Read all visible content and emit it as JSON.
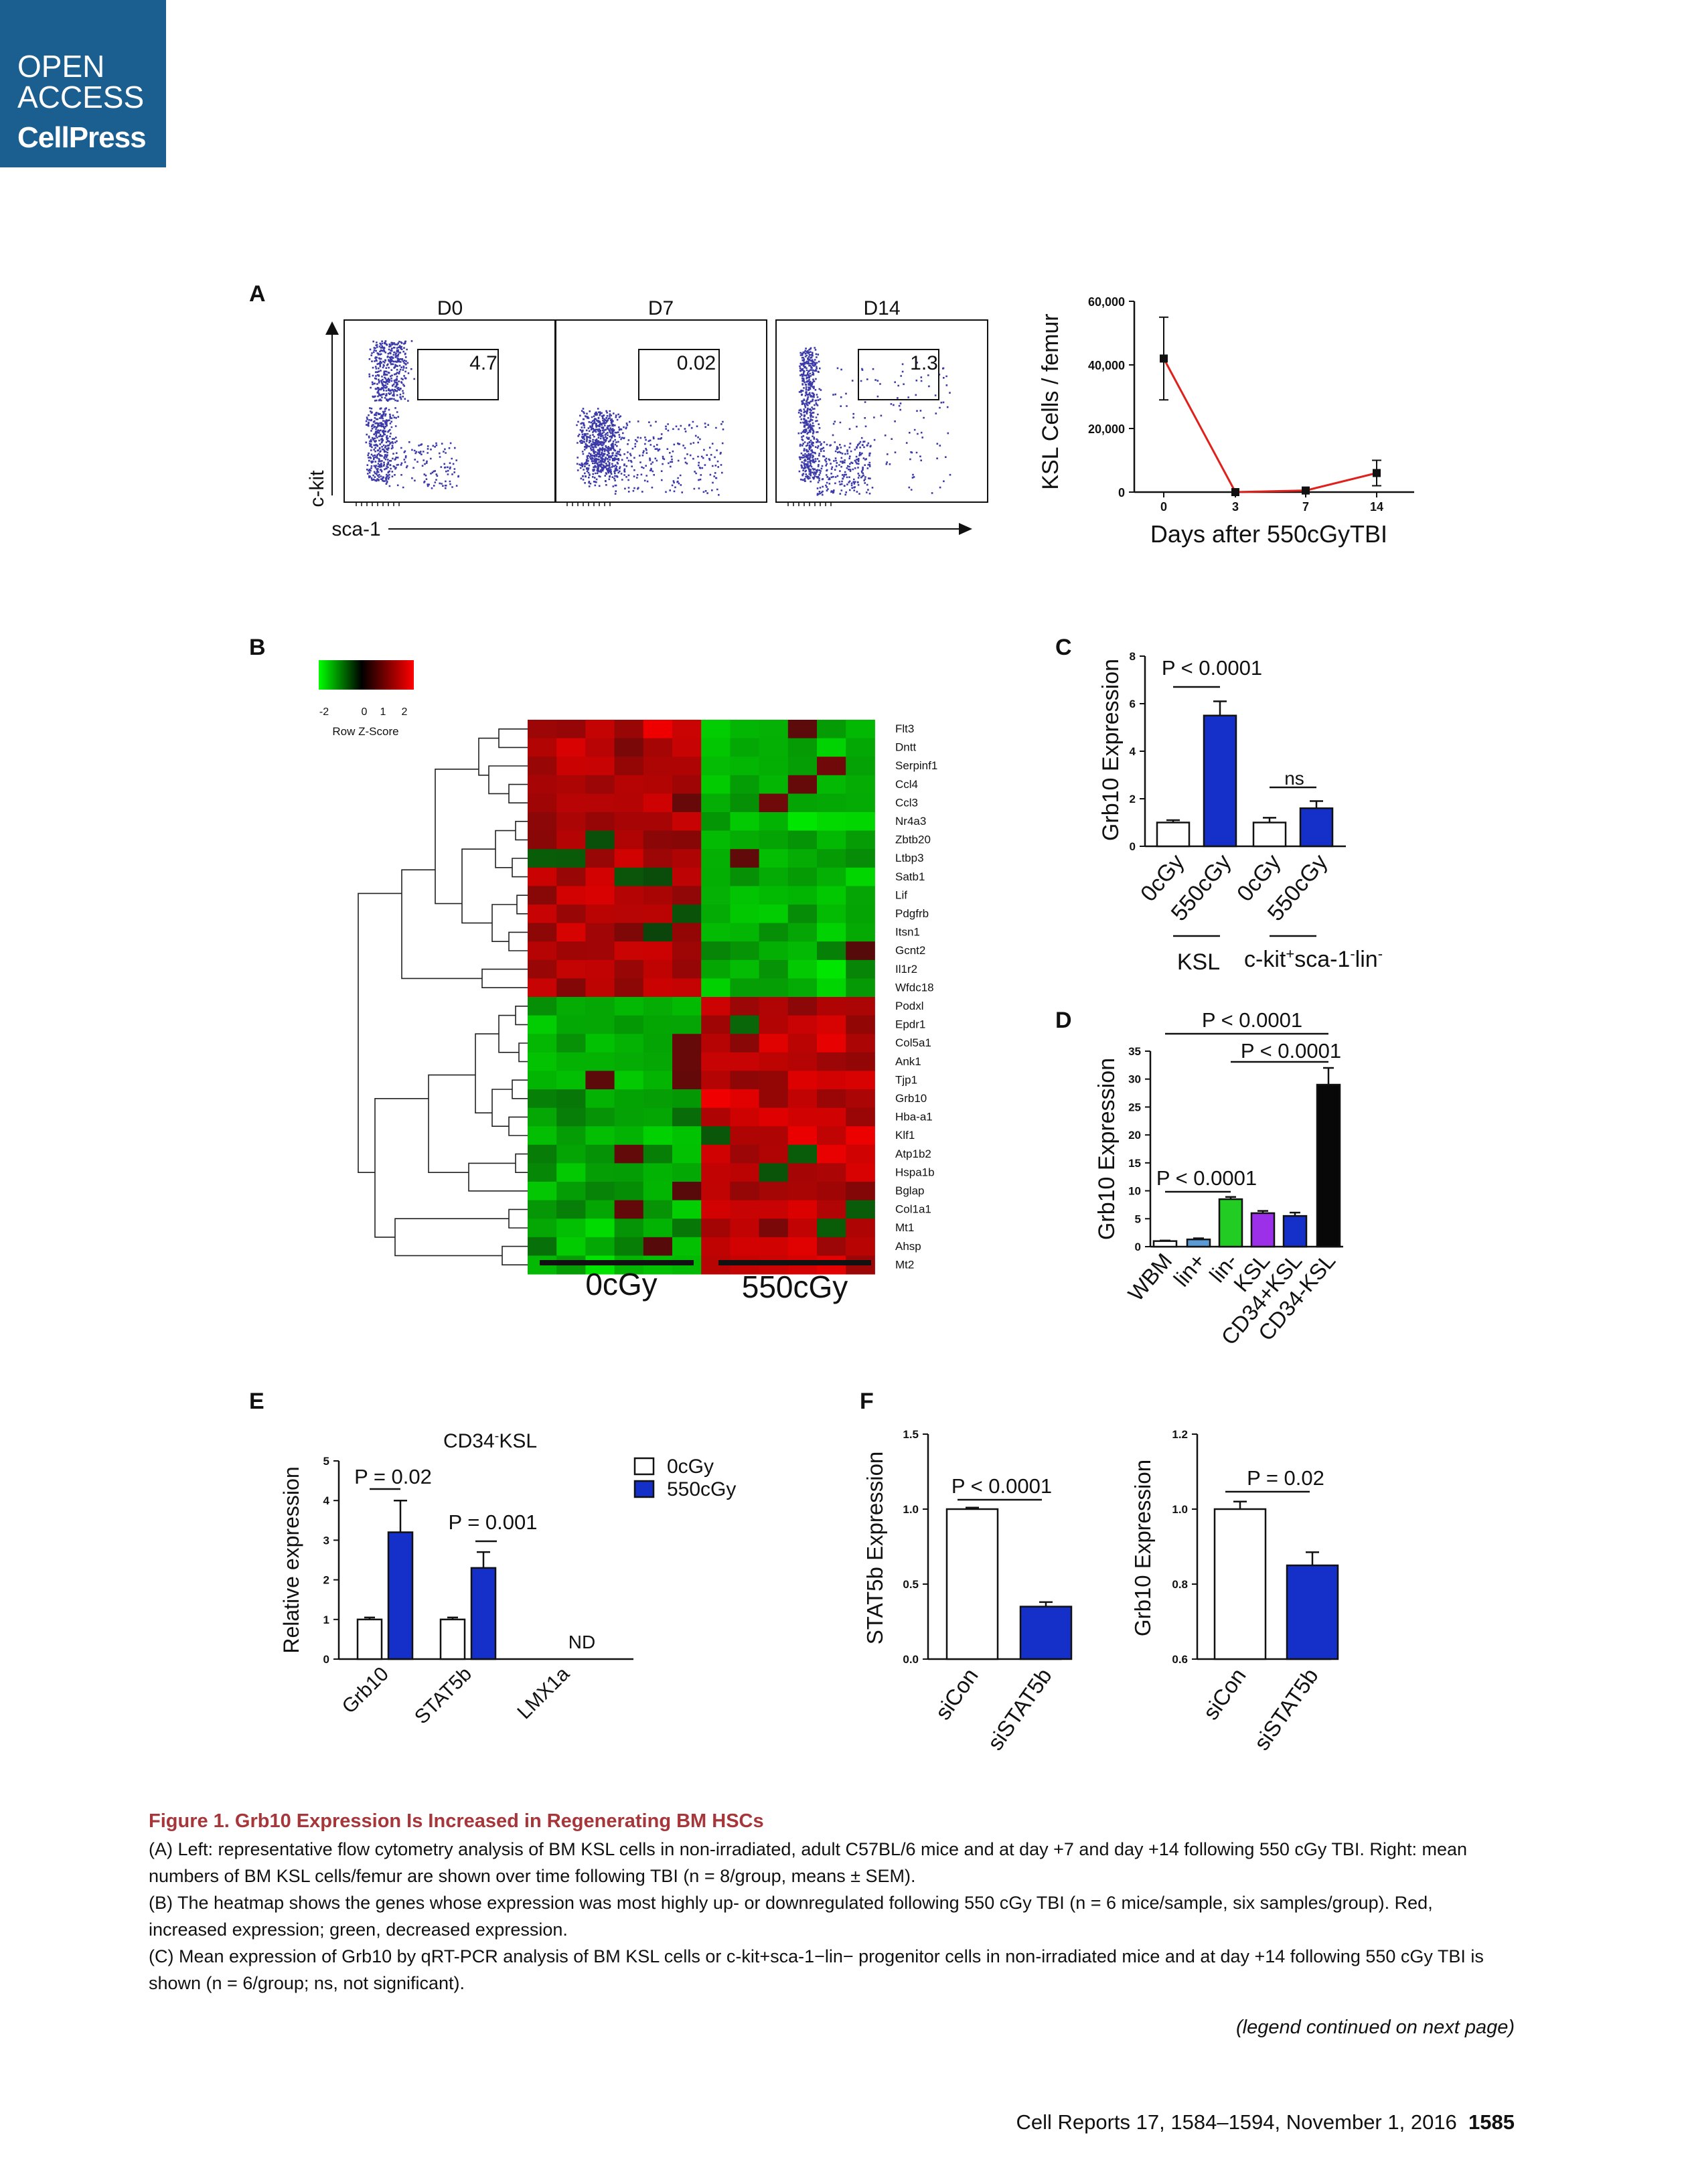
{
  "badge": {
    "line1": "OPEN",
    "line2": "ACCESS",
    "brand": "CellPress"
  },
  "panels": {
    "A": "A",
    "B": "B",
    "C": "C",
    "D": "D",
    "E": "E",
    "F": "F"
  },
  "panelA": {
    "flow": {
      "titles": [
        "D0",
        "D7",
        "D14"
      ],
      "gates": [
        "4.7",
        "0.02",
        "1.3"
      ],
      "ylabel": "c-kit",
      "xlabel": "sca-1",
      "dot_color": "#3b3aa8"
    },
    "chart_data": {
      "type": "line",
      "x": [
        0,
        3,
        7,
        14
      ],
      "y": [
        42000,
        0,
        500,
        6000
      ],
      "err": [
        13000,
        0,
        0,
        4000
      ],
      "xticks": [
        "0",
        "3",
        "7",
        "14"
      ],
      "yticks": [
        "0",
        "20,000",
        "40,000",
        "60,000"
      ],
      "ylim": [
        0,
        60000
      ],
      "xlabel": "Days after 550cGyTBI",
      "ylabel": "KSL Cells / femur",
      "color": "#e0201a"
    }
  },
  "panelB": {
    "scale": {
      "ticks": [
        "-2",
        "0",
        "1",
        "2"
      ],
      "label": "Row Z-Score"
    },
    "genes": [
      "Flt3",
      "Dntt",
      "Serpinf1",
      "Ccl4",
      "Ccl3",
      "Nr4a3",
      "Zbtb20",
      "Ltbp3",
      "Satb1",
      "Lif",
      "Pdgfrb",
      "Itsn1",
      "Gcnt2",
      "Il1r2",
      "Wfdc18",
      "Podxl",
      "Epdr1",
      "Col5a1",
      "Ank1",
      "Tjp1",
      "Grb10",
      "Hba-a1",
      "Klf1",
      "Atp1b2",
      "Hspa1b",
      "Bglap",
      "Col1a1",
      "Mt1",
      "Ahsp",
      "Mt2"
    ],
    "groups": [
      "0cGy",
      "550cGy"
    ],
    "chart_data": {
      "type": "heatmap",
      "rows": 30,
      "columns": 12,
      "groups": [
        "0cGy",
        "550cGy"
      ],
      "color_scale": [
        "#00c000",
        "#000000",
        "#e00000"
      ]
    }
  },
  "panelC": {
    "chart_data": {
      "type": "bar",
      "categories": [
        "0cGy",
        "550cGy",
        "0cGy",
        "550cGy"
      ],
      "values": [
        1.0,
        5.5,
        1.0,
        1.6
      ],
      "err": [
        0.1,
        0.6,
        0.2,
        0.3
      ],
      "colors": [
        "#ffffff",
        "#1530c8",
        "#ffffff",
        "#1530c8"
      ],
      "ylim": [
        0,
        8
      ],
      "yticks": [
        "0",
        "2",
        "4",
        "6",
        "8"
      ],
      "ylabel": "Grb10 Expression",
      "group_labels": [
        "KSL",
        "c-kit+sca-1-lin-"
      ],
      "annotations": [
        "P < 0.0001",
        "ns"
      ]
    }
  },
  "panelD": {
    "chart_data": {
      "type": "bar",
      "categories": [
        "WBM",
        "lin+",
        "lin-",
        "KSL",
        "CD34+KSL",
        "CD34-KSL"
      ],
      "values": [
        1.0,
        1.3,
        8.5,
        6.0,
        5.5,
        29.0
      ],
      "err": [
        0.1,
        0.2,
        0.4,
        0.4,
        0.6,
        3.0
      ],
      "colors": [
        "#ffffff",
        "#5b9bd5",
        "#22cc22",
        "#9b30e8",
        "#1530c8",
        "#080808"
      ],
      "ylim": [
        0,
        35
      ],
      "yticks": [
        "0",
        "5",
        "10",
        "15",
        "20",
        "25",
        "30",
        "35"
      ],
      "ylabel": "Grb10 Expression",
      "annotations": [
        "P < 0.0001",
        "P < 0.0001",
        "P < 0.0001"
      ]
    }
  },
  "panelE": {
    "title": "CD34-KSL",
    "legend": [
      "0cGy",
      "550cGy"
    ],
    "chart_data": {
      "type": "bar",
      "categories": [
        "Grb10",
        "STAT5b",
        "LMX1a"
      ],
      "series": [
        {
          "name": "0cGy",
          "values": [
            1.0,
            1.0,
            null
          ]
        },
        {
          "name": "550cGy",
          "values": [
            3.2,
            2.3,
            null
          ]
        }
      ],
      "err": [
        [
          0.05,
          0.05
        ],
        [
          0.8,
          0.4
        ]
      ],
      "ylim": [
        0,
        5
      ],
      "yticks": [
        "0",
        "1",
        "2",
        "3",
        "4",
        "5"
      ],
      "ylabel": "Relative expression",
      "annotations": [
        "P = 0.02",
        "P = 0.001",
        "ND"
      ]
    }
  },
  "panelF": {
    "chart_data": [
      {
        "type": "bar",
        "categories": [
          "siCon",
          "siSTAT5b"
        ],
        "values": [
          1.0,
          0.35
        ],
        "err": [
          0.01,
          0.03
        ],
        "ylim": [
          0,
          1.5
        ],
        "yticks": [
          "0.0",
          "0.5",
          "1.0",
          "1.5"
        ],
        "ylabel": "STAT5b Expression",
        "annotation": "P < 0.0001"
      },
      {
        "type": "bar",
        "categories": [
          "siCon",
          "siSTAT5b"
        ],
        "values": [
          1.0,
          0.85
        ],
        "err": [
          0.02,
          0.035
        ],
        "ylim": [
          0.6,
          1.2
        ],
        "yticks": [
          "0.6",
          "0.8",
          "1.0",
          "1.2"
        ],
        "ylabel": "Grb10 Expression",
        "annotation": "P = 0.02"
      }
    ]
  },
  "caption": {
    "title": "Figure 1. Grb10 Expression Is Increased in Regenerating BM HSCs",
    "A": "(A) Left: representative flow cytometry analysis of BM KSL cells in non-irradiated, adult C57BL/6 mice and at day +7 and day +14 following 550 cGy TBI. Right: mean numbers of BM KSL cells/femur are shown over time following TBI (n = 8/group, means ± SEM).",
    "B": "(B) The heatmap shows the genes whose expression was most highly up- or downregulated following 550 cGy TBI (n = 6 mice/sample, six samples/group). Red, increased expression; green, decreased expression.",
    "C": "(C) Mean expression of Grb10 by qRT-PCR analysis of BM KSL cells or c-kit+sca-1−lin− progenitor cells in non-irradiated mice and at day +14 following 550 cGy TBI is shown (n = 6/group; ns, not significant).",
    "continued": "(legend continued on next page)"
  },
  "footer": {
    "journal": "Cell Reports 17, 1584–1594, November 1, 2016",
    "page": "1585"
  }
}
